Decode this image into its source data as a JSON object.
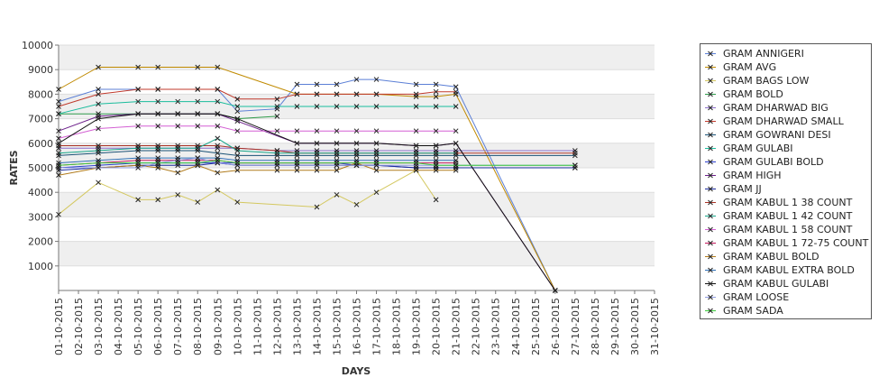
{
  "chart_data": {
    "type": "line",
    "title": "",
    "xlabel": "DAYS",
    "ylabel": "RATES",
    "ylim": [
      0,
      10000
    ],
    "yticks": [
      1000,
      2000,
      3000,
      4000,
      5000,
      6000,
      7000,
      8000,
      9000,
      10000
    ],
    "ytick_labels": [
      "1000",
      "2000",
      "3000",
      "4000",
      "5000",
      "6000",
      "7000",
      "8000",
      "9000",
      "10000"
    ],
    "categories": [
      "01-10-2015",
      "02-10-2015",
      "03-10-2015",
      "04-10-2015",
      "05-10-2015",
      "06-10-2015",
      "07-10-2015",
      "08-10-2015",
      "09-10-2015",
      "10-10-2015",
      "11-10-2015",
      "12-10-2015",
      "13-10-2015",
      "14-10-2015",
      "15-10-2015",
      "16-10-2015",
      "17-10-2015",
      "18-10-2015",
      "19-10-2015",
      "20-10-2015",
      "21-10-2015",
      "22-10-2015",
      "23-10-2015",
      "24-10-2015",
      "25-10-2015",
      "26-10-2015",
      "27-10-2015",
      "28-10-2015",
      "29-10-2015",
      "30-10-2015",
      "31-10-2015"
    ],
    "legend_position": "right",
    "series": [
      {
        "name": "GRAM ANNIGERI",
        "color": "#5b7fd6",
        "values": [
          7700,
          null,
          8200,
          null,
          8200,
          8200,
          null,
          8200,
          8200,
          7300,
          null,
          7400,
          8400,
          8400,
          8400,
          8600,
          8600,
          null,
          8400,
          8400,
          8300,
          null,
          null,
          null,
          null,
          0,
          null,
          null,
          null,
          null,
          null
        ]
      },
      {
        "name": "GRAM AVG",
        "color": "#c08a00",
        "values": [
          8200,
          null,
          9100,
          null,
          9100,
          9100,
          null,
          9100,
          9100,
          null,
          null,
          null,
          8000,
          8000,
          8000,
          8000,
          8000,
          null,
          7900,
          7900,
          8000,
          null,
          null,
          null,
          null,
          0,
          null,
          null,
          null,
          null,
          null
        ]
      },
      {
        "name": "GRAM BAGS LOW",
        "color": "#d4c860",
        "values": [
          3100,
          null,
          4400,
          null,
          3700,
          3700,
          3900,
          3600,
          4100,
          3600,
          null,
          null,
          null,
          3400,
          3900,
          3500,
          4000,
          null,
          4900,
          3700,
          null,
          null,
          null,
          null,
          null,
          null,
          null,
          null,
          null,
          null,
          null
        ]
      },
      {
        "name": "GRAM BOLD",
        "color": "#2e9a4a",
        "values": [
          7200,
          null,
          7200,
          null,
          7200,
          7200,
          7200,
          7200,
          7200,
          7000,
          null,
          7100,
          null,
          null,
          null,
          null,
          null,
          null,
          null,
          null,
          null,
          null,
          null,
          null,
          null,
          null,
          null,
          null,
          null,
          null,
          null
        ]
      },
      {
        "name": "GRAM DHARWAD BIG",
        "color": "#8a6cc8",
        "values": [
          5800,
          null,
          5800,
          null,
          5800,
          5800,
          5800,
          5800,
          5800,
          5800,
          null,
          5700,
          5700,
          5700,
          5700,
          5700,
          5700,
          null,
          5700,
          5700,
          5700,
          null,
          null,
          null,
          null,
          null,
          5700,
          null,
          null,
          null,
          null
        ]
      },
      {
        "name": "GRAM DHARWAD SMALL",
        "color": "#c0392b",
        "values": [
          7500,
          null,
          8000,
          null,
          8200,
          8200,
          null,
          8200,
          8200,
          7800,
          null,
          7800,
          8000,
          8000,
          8000,
          8000,
          8000,
          null,
          8000,
          8100,
          8100,
          null,
          null,
          null,
          null,
          null,
          null,
          null,
          null,
          null,
          null
        ]
      },
      {
        "name": "GRAM GOWRANI DESI",
        "color": "#1a5276",
        "values": [
          5500,
          null,
          5600,
          null,
          5700,
          5700,
          5700,
          5700,
          5600,
          5500,
          null,
          5500,
          5500,
          5500,
          5500,
          5500,
          5500,
          null,
          5500,
          5500,
          5500,
          null,
          null,
          null,
          null,
          null,
          5500,
          null,
          null,
          null,
          null
        ]
      },
      {
        "name": "GRAM GULABI",
        "color": "#1abc9c",
        "values": [
          7200,
          null,
          7600,
          null,
          7700,
          7700,
          7700,
          7700,
          7700,
          7500,
          null,
          7500,
          7500,
          7500,
          7500,
          7500,
          7500,
          null,
          7500,
          7500,
          7500,
          null,
          null,
          null,
          null,
          null,
          null,
          null,
          null,
          null,
          null
        ]
      },
      {
        "name": "GRAM GULABI BOLD",
        "color": "#2c3ecc",
        "values": [
          5000,
          null,
          5100,
          null,
          5200,
          5200,
          5200,
          5200,
          5200,
          5200,
          null,
          5200,
          5200,
          5200,
          5200,
          5100,
          5100,
          null,
          5000,
          5000,
          5000,
          null,
          null,
          null,
          null,
          null,
          5000,
          null,
          null,
          null,
          null
        ]
      },
      {
        "name": "GRAM HIGH",
        "color": "#6c1f8a",
        "values": [
          6500,
          null,
          7100,
          null,
          7200,
          7200,
          7200,
          7200,
          7200,
          6900,
          null,
          null,
          6000,
          6000,
          6000,
          6000,
          6000,
          null,
          5900,
          5900,
          6000,
          null,
          null,
          null,
          null,
          0,
          null,
          null,
          null,
          null,
          null
        ]
      },
      {
        "name": "GRAM JJ",
        "color": "#1c2c9c",
        "values": [
          4900,
          null,
          5000,
          null,
          5100,
          5100,
          5100,
          5100,
          5200,
          5100,
          null,
          5100,
          5100,
          5100,
          5100,
          5100,
          5100,
          null,
          5000,
          5000,
          5000,
          null,
          null,
          null,
          null,
          null,
          5000,
          null,
          null,
          null,
          null
        ]
      },
      {
        "name": "GRAM KABUL 1 38 COUNT",
        "color": "#a93226",
        "values": [
          5900,
          null,
          5900,
          null,
          5900,
          5900,
          5900,
          5900,
          5900,
          5800,
          null,
          5700,
          5600,
          5600,
          5600,
          5600,
          5600,
          null,
          5600,
          5600,
          5600,
          null,
          null,
          null,
          null,
          null,
          5600,
          null,
          null,
          null,
          null
        ]
      },
      {
        "name": "GRAM KABUL 1 42 COUNT",
        "color": "#17a589",
        "values": [
          5600,
          null,
          5700,
          null,
          5800,
          5800,
          5800,
          5800,
          6200,
          5700,
          null,
          5600,
          5600,
          5600,
          5600,
          5600,
          5600,
          null,
          5600,
          5600,
          5600,
          null,
          null,
          null,
          null,
          null,
          null,
          null,
          null,
          null,
          null
        ]
      },
      {
        "name": "GRAM KABUL 1 58 COUNT",
        "color": "#d35fd3",
        "values": [
          6200,
          null,
          6600,
          null,
          6700,
          6700,
          6700,
          6700,
          6700,
          6500,
          null,
          6500,
          6500,
          6500,
          6500,
          6500,
          6500,
          null,
          6500,
          6500,
          6500,
          null,
          null,
          null,
          null,
          null,
          null,
          null,
          null,
          null,
          null
        ]
      },
      {
        "name": "GRAM KABUL 1 72-75 COUNT",
        "color": "#c2185b",
        "values": [
          5100,
          null,
          5200,
          null,
          5300,
          5300,
          5300,
          5300,
          5300,
          5200,
          null,
          5200,
          5200,
          5200,
          5200,
          5200,
          5200,
          null,
          5200,
          5200,
          5200,
          null,
          null,
          null,
          null,
          null,
          null,
          null,
          null,
          null,
          null
        ]
      },
      {
        "name": "GRAM KABUL BOLD",
        "color": "#b07a1a",
        "values": [
          4700,
          null,
          5000,
          null,
          5100,
          5000,
          4800,
          5100,
          4800,
          4900,
          null,
          4900,
          4900,
          4900,
          4900,
          5200,
          4900,
          null,
          4900,
          4900,
          4900,
          null,
          null,
          null,
          null,
          null,
          null,
          null,
          null,
          null,
          null
        ]
      },
      {
        "name": "GRAM KABUL EXTRA BOLD",
        "color": "#2f6fb5",
        "values": [
          5200,
          null,
          5300,
          null,
          5400,
          5400,
          5400,
          5400,
          5400,
          5300,
          null,
          5300,
          5300,
          5300,
          5300,
          5300,
          5300,
          null,
          5300,
          5300,
          5300,
          null,
          null,
          null,
          null,
          null,
          null,
          null,
          null,
          null,
          null
        ]
      },
      {
        "name": "GRAM KABUL GULABI",
        "color": "#111111",
        "values": [
          6000,
          null,
          7000,
          null,
          7200,
          7200,
          7200,
          7200,
          7200,
          7000,
          null,
          null,
          6000,
          6000,
          6000,
          6000,
          6000,
          null,
          5900,
          5900,
          6000,
          null,
          null,
          null,
          null,
          0,
          null,
          null,
          null,
          null,
          null
        ]
      },
      {
        "name": "GRAM LOOSE",
        "color": "#8e9adf",
        "values": [
          5000,
          null,
          5000,
          null,
          5000,
          5200,
          5300,
          5400,
          5200,
          5100,
          null,
          5100,
          5100,
          5100,
          5100,
          5100,
          5100,
          null,
          5100,
          5100,
          5100,
          null,
          null,
          null,
          null,
          null,
          5100,
          null,
          null,
          null,
          null
        ]
      },
      {
        "name": "GRAM SADA",
        "color": "#3ccc3c",
        "values": [
          5100,
          null,
          5200,
          null,
          5200,
          5200,
          5200,
          5200,
          5300,
          5200,
          null,
          5200,
          5200,
          5200,
          5200,
          5200,
          5200,
          null,
          5200,
          5100,
          5100,
          null,
          null,
          null,
          null,
          null,
          5100,
          null,
          null,
          null,
          null
        ]
      }
    ]
  }
}
